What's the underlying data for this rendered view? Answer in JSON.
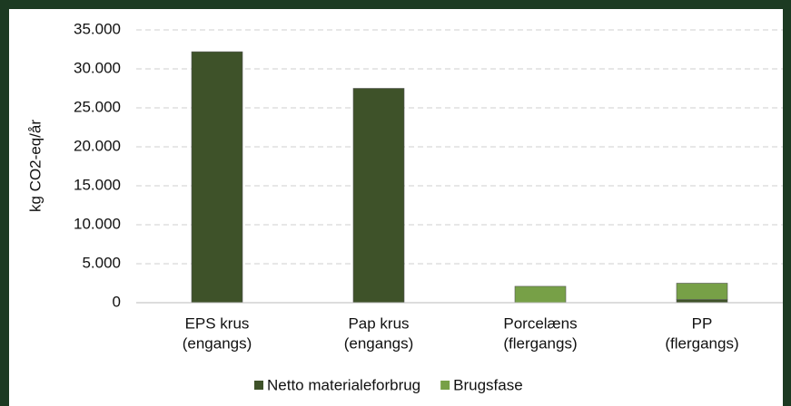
{
  "chart_data": {
    "type": "stacked_bar",
    "ylabel": "kg CO2-eq/år",
    "categories": [
      [
        "EPS krus",
        "(engangs)"
      ],
      [
        "Pap krus",
        "(engangs)"
      ],
      [
        "Porcelæns",
        "(flergangs)"
      ],
      [
        "PP",
        "(flergangs)"
      ]
    ],
    "series": [
      {
        "name": "Netto materialeforbrug",
        "color": "#3e5229",
        "values": [
          32200,
          27500,
          0,
          400
        ]
      },
      {
        "name": "Brugsfase",
        "color": "#77a047",
        "values": [
          0,
          0,
          2100,
          2100
        ]
      }
    ],
    "ylim": [
      0,
      35000
    ],
    "yticks": [
      0,
      {
        "value": 5000,
        "label": "5.000"
      },
      {
        "value": 10000,
        "label": "10.000"
      },
      {
        "value": 15000,
        "label": "15.000"
      },
      {
        "value": 20000,
        "label": "20.000"
      },
      {
        "value": 25000,
        "label": "25.000"
      },
      {
        "value": 30000,
        "label": "30.000"
      },
      {
        "value": 35000,
        "label": "35.000"
      }
    ],
    "grid": true,
    "legend": "bottom"
  }
}
